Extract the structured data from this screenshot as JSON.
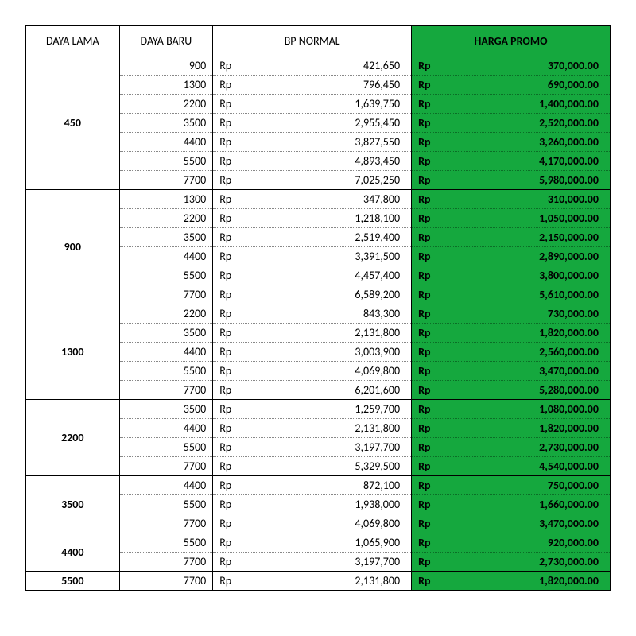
{
  "table": {
    "type": "table",
    "background_color": "#ffffff",
    "promo_bg_color": "#15a83e",
    "border_color": "#000000",
    "dotted_color": "#888888",
    "font_family": "Calibri",
    "header_fontsize": 14,
    "cell_fontsize": 14,
    "currency_symbol": "Rp",
    "columns": [
      {
        "key": "daya_lama",
        "label": "DAYA LAMA",
        "width_pct": 16,
        "align": "center"
      },
      {
        "key": "daya_baru",
        "label": "DAYA BARU",
        "width_pct": 16,
        "align": "right"
      },
      {
        "key": "bp_normal",
        "label": "BP NORMAL",
        "width_pct": 34,
        "align": "right"
      },
      {
        "key": "harga_promo",
        "label": "HARGA PROMO",
        "width_pct": 34,
        "align": "right",
        "highlight": true
      }
    ],
    "groups": [
      {
        "daya_lama": "450",
        "rows": [
          {
            "daya_baru": "900",
            "bp_normal": "421,650",
            "harga_promo": "370,000.00"
          },
          {
            "daya_baru": "1300",
            "bp_normal": "796,450",
            "harga_promo": "690,000.00"
          },
          {
            "daya_baru": "2200",
            "bp_normal": "1,639,750",
            "harga_promo": "1,400,000.00"
          },
          {
            "daya_baru": "3500",
            "bp_normal": "2,955,450",
            "harga_promo": "2,520,000.00"
          },
          {
            "daya_baru": "4400",
            "bp_normal": "3,827,550",
            "harga_promo": "3,260,000.00"
          },
          {
            "daya_baru": "5500",
            "bp_normal": "4,893,450",
            "harga_promo": "4,170,000.00"
          },
          {
            "daya_baru": "7700",
            "bp_normal": "7,025,250",
            "harga_promo": "5,980,000.00"
          }
        ]
      },
      {
        "daya_lama": "900",
        "rows": [
          {
            "daya_baru": "1300",
            "bp_normal": "347,800",
            "harga_promo": "310,000.00"
          },
          {
            "daya_baru": "2200",
            "bp_normal": "1,218,100",
            "harga_promo": "1,050,000.00"
          },
          {
            "daya_baru": "3500",
            "bp_normal": "2,519,400",
            "harga_promo": "2,150,000.00"
          },
          {
            "daya_baru": "4400",
            "bp_normal": "3,391,500",
            "harga_promo": "2,890,000.00"
          },
          {
            "daya_baru": "5500",
            "bp_normal": "4,457,400",
            "harga_promo": "3,800,000.00"
          },
          {
            "daya_baru": "7700",
            "bp_normal": "6,589,200",
            "harga_promo": "5,610,000.00"
          }
        ]
      },
      {
        "daya_lama": "1300",
        "rows": [
          {
            "daya_baru": "2200",
            "bp_normal": "843,300",
            "harga_promo": "730,000.00"
          },
          {
            "daya_baru": "3500",
            "bp_normal": "2,131,800",
            "harga_promo": "1,820,000.00"
          },
          {
            "daya_baru": "4400",
            "bp_normal": "3,003,900",
            "harga_promo": "2,560,000.00"
          },
          {
            "daya_baru": "5500",
            "bp_normal": "4,069,800",
            "harga_promo": "3,470,000.00"
          },
          {
            "daya_baru": "7700",
            "bp_normal": "6,201,600",
            "harga_promo": "5,280,000.00"
          }
        ]
      },
      {
        "daya_lama": "2200",
        "rows": [
          {
            "daya_baru": "3500",
            "bp_normal": "1,259,700",
            "harga_promo": "1,080,000.00"
          },
          {
            "daya_baru": "4400",
            "bp_normal": "2,131,800",
            "harga_promo": "1,820,000.00"
          },
          {
            "daya_baru": "5500",
            "bp_normal": "3,197,700",
            "harga_promo": "2,730,000.00"
          },
          {
            "daya_baru": "7700",
            "bp_normal": "5,329,500",
            "harga_promo": "4,540,000.00"
          }
        ]
      },
      {
        "daya_lama": "3500",
        "rows": [
          {
            "daya_baru": "4400",
            "bp_normal": "872,100",
            "harga_promo": "750,000.00"
          },
          {
            "daya_baru": "5500",
            "bp_normal": "1,938,000",
            "harga_promo": "1,660,000.00"
          },
          {
            "daya_baru": "7700",
            "bp_normal": "4,069,800",
            "harga_promo": "3,470,000.00"
          }
        ]
      },
      {
        "daya_lama": "4400",
        "rows": [
          {
            "daya_baru": "5500",
            "bp_normal": "1,065,900",
            "harga_promo": "920,000.00"
          },
          {
            "daya_baru": "7700",
            "bp_normal": "3,197,700",
            "harga_promo": "2,730,000.00"
          }
        ]
      },
      {
        "daya_lama": "5500",
        "rows": [
          {
            "daya_baru": "7700",
            "bp_normal": "2,131,800",
            "harga_promo": "1,820,000.00"
          }
        ]
      }
    ]
  }
}
